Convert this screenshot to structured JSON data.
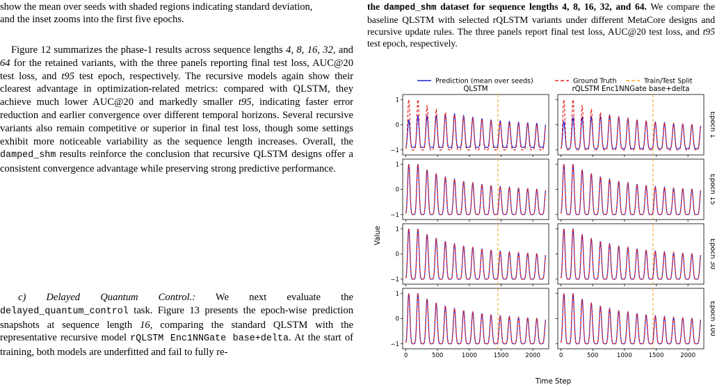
{
  "left": {
    "clip_line_1": "show the mean over seeds with shaded regions indicating standard deviation,",
    "clip_line_2": "and the inset zooms into the first five epochs.",
    "para1": {
      "t1": "Figure 12 summarizes the phase-1 results across sequence lengths ",
      "m1": "4, 8, 16, 32,",
      "t2": " and ",
      "m2": "64",
      "t3": " for the retained variants, with the three panels reporting final test loss, AUC@20 test loss, and ",
      "m3": "t95",
      "t4": " test epoch, respectively. The recursive models again show their clearest advantage in optimization-related metrics: compared with QLSTM, they achieve much lower AUC@20 and markedly smaller ",
      "m4": "t95",
      "t5": ", indicating faster error reduction and earlier convergence over different temporal horizons. Several recursive variants also remain competitive or superior in final test loss, though some settings exhibit more noticeable variability as the sequence length increases. Overall, the ",
      "code1": "damped_shm",
      "t6": " results reinforce the conclusion that recursive QLSTM designs offer a consistent convergence advantage while preserving strong predictive performance."
    },
    "para2": {
      "heading": "c) Delayed Quantum Control.:",
      "t1": " We next evaluate the ",
      "code1": "delayed_quantum_control",
      "t2": " task. Figure 13 presents the epoch-wise prediction snapshots at sequence length ",
      "m1": "16",
      "t3": ", comparing the standard QLSTM with the representative recursive model ",
      "code2": "rQLSTM Enc1NNGate base+delta",
      "t4": ". At the start of training, both models are underfitted and fail to fully re-"
    }
  },
  "right": {
    "caption_b1": "the ",
    "caption_code": "damped_shm",
    "caption_b2": " dataset for sequence lengths 4, 8, 16, 32, and 64.",
    "caption_rest": " We compare the baseline QLSTM with selected rQLSTM variants under different MetaCore designs and recursive update rules. The three panels report final test loss, AUC@20 test loss, and ",
    "caption_m": "t95",
    "caption_end": " test epoch, respectively."
  },
  "figure": {
    "legend": [
      "Prediction (mean over seeds)",
      "Ground Truth",
      "Train/Test Split"
    ],
    "col_titles": [
      "QLSTM",
      "rQLSTM Enc1NNGate base+delta"
    ],
    "row_labels": [
      "Epoch 1",
      "Epoch 15",
      "Epoch 30",
      "Epoch 100"
    ],
    "ylabel": "Value",
    "xlabel": "Time Step",
    "colors": {
      "prediction": "#1f1fd6",
      "truth": "#e8211c",
      "split": "#f5a623"
    }
  },
  "chart_data": {
    "type": "line",
    "title": "",
    "xlabel": "Time Step",
    "ylabel": "Value",
    "x_range": [
      -50,
      2250
    ],
    "y_range": [
      -1.2,
      1.2
    ],
    "x_ticks": [
      0,
      500,
      1000,
      1500,
      2000
    ],
    "y_ticks": [
      -1,
      0,
      1
    ],
    "split_x": 1450,
    "oscillation": {
      "period": 144,
      "first_peak": 190,
      "baseline": -1.0,
      "peak_values": [
        1.0,
        0.78,
        0.62,
        0.5,
        0.4,
        0.32,
        0.26,
        0.2,
        0.15,
        0.11,
        0.08,
        0.05,
        0.03,
        0.01
      ]
    },
    "series": [
      {
        "name": "Prediction (mean over seeds)",
        "panels": "per row/column, closely tracks ground truth except Epoch 1 (underfit: peaks damped, baseline raised)"
      },
      {
        "name": "Ground Truth"
      },
      {
        "name": "Train/Test Split"
      }
    ],
    "epoch1_prediction_scale": [
      0.3,
      0.3
    ],
    "epoch1_baseline_offset": [
      0.1,
      0.05
    ]
  }
}
